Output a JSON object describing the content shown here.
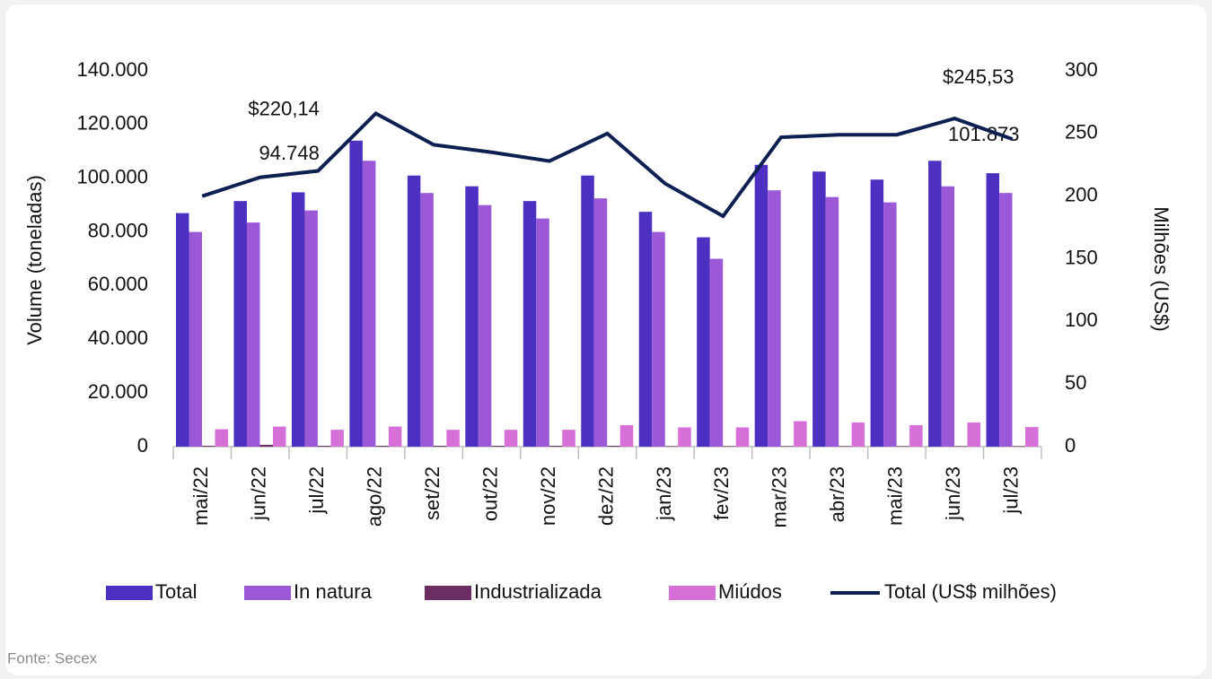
{
  "chart_data": {
    "type": "bar",
    "y_label": "Volume (toneladas)",
    "y2_label": "Milhões (US$)",
    "source": "Fonte: Secex",
    "categories": [
      "mai/22",
      "jun/22",
      "jul/22",
      "ago/22",
      "set/22",
      "out/22",
      "nov/22",
      "dez/22",
      "jan/23",
      "fev/23",
      "mar/23",
      "abr/23",
      "mai/23",
      "jun/23",
      "jul/23"
    ],
    "series": [
      {
        "name": "Total",
        "type": "bar",
        "color": "#4b30c1",
        "values": [
          87000,
          91500,
          94748,
          114000,
          101000,
          97000,
          91500,
          101000,
          87500,
          78000,
          105000,
          102500,
          99500,
          106500,
          101873
        ],
        "value_labels": [
          null,
          null,
          "94.748",
          null,
          null,
          null,
          null,
          null,
          null,
          null,
          null,
          null,
          null,
          null,
          "101.873"
        ]
      },
      {
        "name": "In natura",
        "type": "bar",
        "color": "#9b59d8",
        "values": [
          80000,
          83500,
          88000,
          106500,
          94500,
          90000,
          85000,
          92500,
          80000,
          70000,
          95500,
          93000,
          91000,
          97000,
          94500
        ]
      },
      {
        "name": "Industrializada",
        "type": "bar",
        "color": "#6b2d63",
        "values": [
          300,
          700,
          300,
          300,
          300,
          300,
          300,
          300,
          200,
          200,
          200,
          200,
          200,
          200,
          200
        ]
      },
      {
        "name": "Miúdos",
        "type": "bar",
        "color": "#d76fd8",
        "values": [
          6500,
          7500,
          6300,
          7500,
          6300,
          6300,
          6300,
          8000,
          7200,
          7200,
          9500,
          9000,
          8000,
          9000,
          7300
        ]
      },
      {
        "name": "Total (US$ milhões)",
        "type": "line",
        "axis": "y2",
        "color": "#0e1f52",
        "values": [
          200,
          215,
          220.14,
          266,
          241,
          235,
          228,
          250,
          210,
          184,
          247,
          249,
          249,
          262,
          245.53
        ],
        "value_labels": [
          null,
          null,
          "$220,14",
          null,
          null,
          null,
          null,
          null,
          null,
          null,
          null,
          null,
          null,
          null,
          "$245,53"
        ]
      }
    ],
    "ylim": [
      0,
      140000
    ],
    "yticks": [
      0,
      {
        "value": 20000,
        "label": "20.000"
      },
      {
        "value": 40000,
        "label": "40.000"
      },
      {
        "value": 60000,
        "label": "60.000"
      },
      {
        "value": 80000,
        "label": "80.000"
      },
      {
        "value": 100000,
        "label": "100.000"
      },
      {
        "value": 120000,
        "label": "120.000"
      },
      {
        "value": 140000,
        "label": "140.000"
      }
    ],
    "y2lim": [
      0,
      300
    ],
    "y2ticks": [
      0,
      50,
      100,
      150,
      200,
      250,
      300
    ],
    "grid": false,
    "legend": "bottom"
  }
}
